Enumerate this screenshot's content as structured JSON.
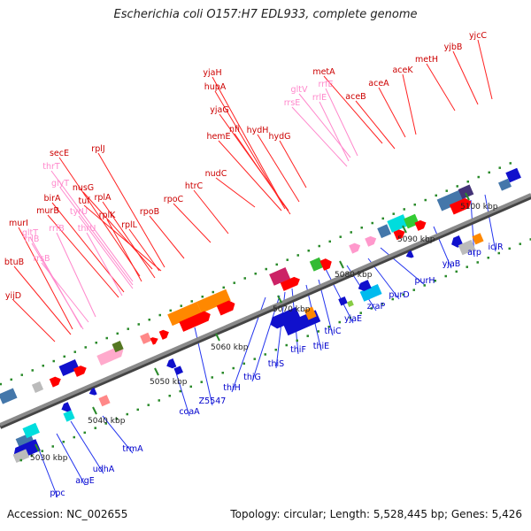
{
  "title": "Escherichia coli O157:H7 EDL933, complete genome",
  "footer": {
    "accession": "Accession: NC_002655",
    "summary": "Topology: circular; Length: 5,528,445 bp; Genes: 5,426"
  },
  "colors": {
    "backbone": "#8a8a8a",
    "forward_gene": "#ff0000",
    "reverse_gene": "#1010ee",
    "rna_label": "#ff88cc",
    "gene_label_fwd": "#cc0000",
    "gene_label_rev": "#0000cc",
    "tick_green": "#2a8a2a"
  },
  "scale_ticks": [
    {
      "label": "5030 kbp"
    },
    {
      "label": "5040 kbp"
    },
    {
      "label": "5050 kbp"
    },
    {
      "label": "5060 kbp"
    },
    {
      "label": "5070 kbp"
    },
    {
      "label": "5080 kbp"
    },
    {
      "label": "5090 kbp"
    },
    {
      "label": "5100 kbp"
    }
  ],
  "labels": [
    {
      "text": "yjcC",
      "kind": "fwd"
    },
    {
      "text": "yjbB",
      "kind": "fwd"
    },
    {
      "text": "metH",
      "kind": "fwd"
    },
    {
      "text": "aceK",
      "kind": "fwd"
    },
    {
      "text": "aceA",
      "kind": "fwd"
    },
    {
      "text": "aceB",
      "kind": "fwd"
    },
    {
      "text": "metA",
      "kind": "fwd"
    },
    {
      "text": "rrfE",
      "kind": "rna"
    },
    {
      "text": "gltV",
      "kind": "rna"
    },
    {
      "text": "rrlE",
      "kind": "rna"
    },
    {
      "text": "rrsE",
      "kind": "rna"
    },
    {
      "text": "yjaH",
      "kind": "fwd"
    },
    {
      "text": "hupA",
      "kind": "fwd"
    },
    {
      "text": "yjaG",
      "kind": "fwd"
    },
    {
      "text": "nfi",
      "kind": "fwd"
    },
    {
      "text": "hydH",
      "kind": "fwd"
    },
    {
      "text": "hemE",
      "kind": "fwd"
    },
    {
      "text": "hydG",
      "kind": "fwd"
    },
    {
      "text": "nudC",
      "kind": "fwd"
    },
    {
      "text": "htrC",
      "kind": "fwd"
    },
    {
      "text": "rpoC",
      "kind": "fwd"
    },
    {
      "text": "rpoB",
      "kind": "fwd"
    },
    {
      "text": "secE",
      "kind": "fwd"
    },
    {
      "text": "thrT",
      "kind": "rna"
    },
    {
      "text": "glyT",
      "kind": "rna"
    },
    {
      "text": "nusG",
      "kind": "fwd"
    },
    {
      "text": "rplJ",
      "kind": "fwd"
    },
    {
      "text": "tuf",
      "kind": "fwd"
    },
    {
      "text": "rplA",
      "kind": "fwd"
    },
    {
      "text": "birA",
      "kind": "fwd"
    },
    {
      "text": "murB",
      "kind": "fwd"
    },
    {
      "text": "tyrU",
      "kind": "rna"
    },
    {
      "text": "rplK",
      "kind": "fwd"
    },
    {
      "text": "thrU",
      "kind": "rna"
    },
    {
      "text": "rplL",
      "kind": "fwd"
    },
    {
      "text": "rrfB",
      "kind": "rna"
    },
    {
      "text": "murI",
      "kind": "fwd"
    },
    {
      "text": "gltT",
      "kind": "rna"
    },
    {
      "text": "rrlB",
      "kind": "rna"
    },
    {
      "text": "btuB",
      "kind": "fwd"
    },
    {
      "text": "rrsB",
      "kind": "rna"
    },
    {
      "text": "yijD",
      "kind": "fwd"
    },
    {
      "text": "iclR",
      "kind": "rev"
    },
    {
      "text": "arp",
      "kind": "rev"
    },
    {
      "text": "yjaB",
      "kind": "rev"
    },
    {
      "text": "purH",
      "kind": "rev"
    },
    {
      "text": "purD",
      "kind": "rev"
    },
    {
      "text": "zraP",
      "kind": "rev"
    },
    {
      "text": "yjaE",
      "kind": "rev"
    },
    {
      "text": "thiC",
      "kind": "rev"
    },
    {
      "text": "thiE",
      "kind": "rev"
    },
    {
      "text": "thiF",
      "kind": "rev"
    },
    {
      "text": "thiS",
      "kind": "rev"
    },
    {
      "text": "thiG",
      "kind": "rev"
    },
    {
      "text": "thiH",
      "kind": "rev"
    },
    {
      "text": "Z5547",
      "kind": "rev"
    },
    {
      "text": "coaA",
      "kind": "rev"
    },
    {
      "text": "trmA",
      "kind": "rev"
    },
    {
      "text": "udhA",
      "kind": "rev"
    },
    {
      "text": "argE",
      "kind": "rev"
    },
    {
      "text": "ppc",
      "kind": "rev"
    }
  ]
}
